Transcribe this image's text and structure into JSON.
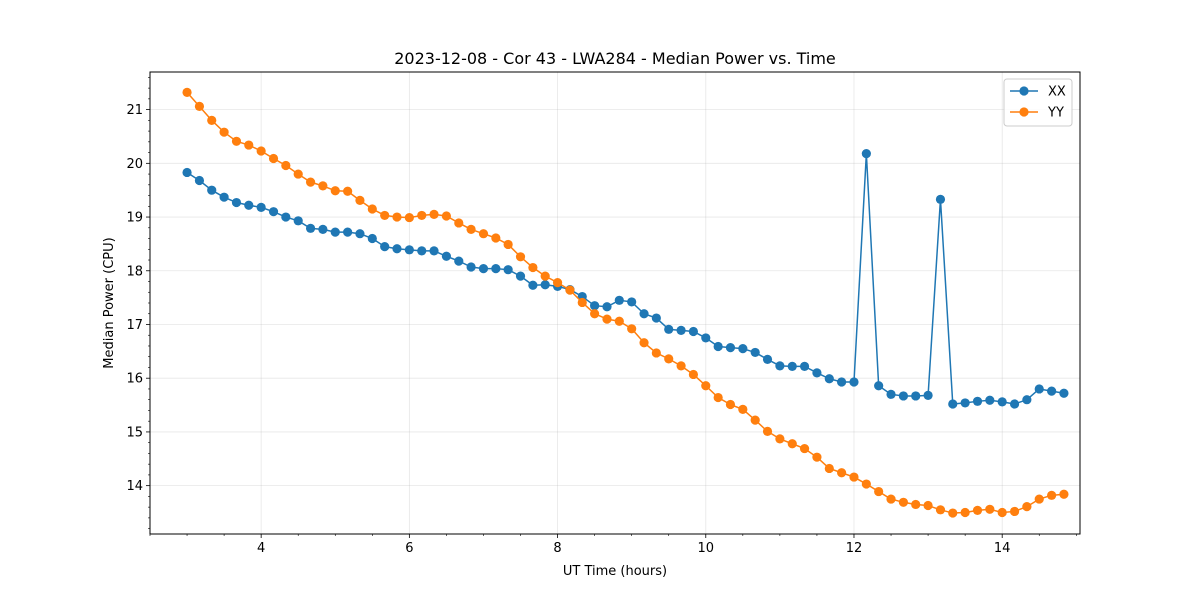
{
  "chart_data": {
    "type": "line",
    "title": "2023-12-08 - Cor 43 - LWA284 - Median Power vs. Time",
    "xlabel": "UT Time (hours)",
    "ylabel": "Median Power (CPU)",
    "xlim": [
      2.5,
      15.05
    ],
    "ylim": [
      13.1,
      21.7
    ],
    "xticks": [
      4,
      6,
      8,
      10,
      12,
      14
    ],
    "yticks": [
      14,
      15,
      16,
      17,
      18,
      19,
      20,
      21
    ],
    "grid": true,
    "legend_position": "top-right",
    "x": [
      3.0,
      3.167,
      3.333,
      3.5,
      3.667,
      3.833,
      4.0,
      4.167,
      4.333,
      4.5,
      4.667,
      4.833,
      5.0,
      5.167,
      5.333,
      5.5,
      5.667,
      5.833,
      6.0,
      6.167,
      6.333,
      6.5,
      6.667,
      6.833,
      7.0,
      7.167,
      7.333,
      7.5,
      7.667,
      7.833,
      8.0,
      8.167,
      8.333,
      8.5,
      8.667,
      8.833,
      9.0,
      9.167,
      9.333,
      9.5,
      9.667,
      9.833,
      10.0,
      10.167,
      10.333,
      10.5,
      10.667,
      10.833,
      11.0,
      11.167,
      11.333,
      11.5,
      11.667,
      11.833,
      12.0,
      12.167,
      12.333,
      12.5,
      12.667,
      12.833,
      13.0,
      13.167,
      13.333,
      13.5,
      13.667,
      13.833,
      14.0,
      14.167,
      14.333,
      14.5,
      14.667,
      14.833
    ],
    "series": [
      {
        "name": "XX",
        "color": "#1f77b4",
        "values": [
          19.83,
          19.68,
          19.5,
          19.37,
          19.27,
          19.22,
          19.18,
          19.1,
          19.0,
          18.93,
          18.79,
          18.77,
          18.72,
          18.72,
          18.69,
          18.6,
          18.45,
          18.41,
          18.39,
          18.37,
          18.37,
          18.27,
          18.18,
          18.07,
          18.04,
          18.04,
          18.02,
          17.9,
          17.73,
          17.74,
          17.71,
          17.65,
          17.52,
          17.35,
          17.33,
          17.45,
          17.42,
          17.2,
          17.12,
          16.91,
          16.89,
          16.87,
          16.75,
          16.59,
          16.57,
          16.55,
          16.48,
          16.35,
          16.23,
          16.22,
          16.22,
          16.1,
          15.99,
          15.93,
          15.93,
          20.18,
          15.86,
          15.7,
          15.67,
          15.67,
          15.68,
          19.33,
          15.52,
          15.54,
          15.57,
          15.59,
          15.56,
          15.52,
          15.6,
          15.8,
          15.76,
          15.72
        ]
      },
      {
        "name": "YY",
        "color": "#ff7f0e",
        "values": [
          21.32,
          21.06,
          20.8,
          20.58,
          20.41,
          20.34,
          20.23,
          20.09,
          19.96,
          19.8,
          19.65,
          19.58,
          19.49,
          19.48,
          19.31,
          19.15,
          19.03,
          19.0,
          18.99,
          19.03,
          19.05,
          19.02,
          18.89,
          18.77,
          18.69,
          18.61,
          18.49,
          18.26,
          18.06,
          17.9,
          17.78,
          17.64,
          17.41,
          17.2,
          17.1,
          17.06,
          16.92,
          16.66,
          16.47,
          16.36,
          16.23,
          16.07,
          15.86,
          15.64,
          15.51,
          15.42,
          15.22,
          15.01,
          14.87,
          14.78,
          14.69,
          14.53,
          14.32,
          14.24,
          14.16,
          14.03,
          13.89,
          13.75,
          13.69,
          13.65,
          13.63,
          13.55,
          13.49,
          13.5,
          13.54,
          13.56,
          13.5,
          13.52,
          13.61,
          13.75,
          13.82,
          13.84
        ]
      }
    ]
  }
}
